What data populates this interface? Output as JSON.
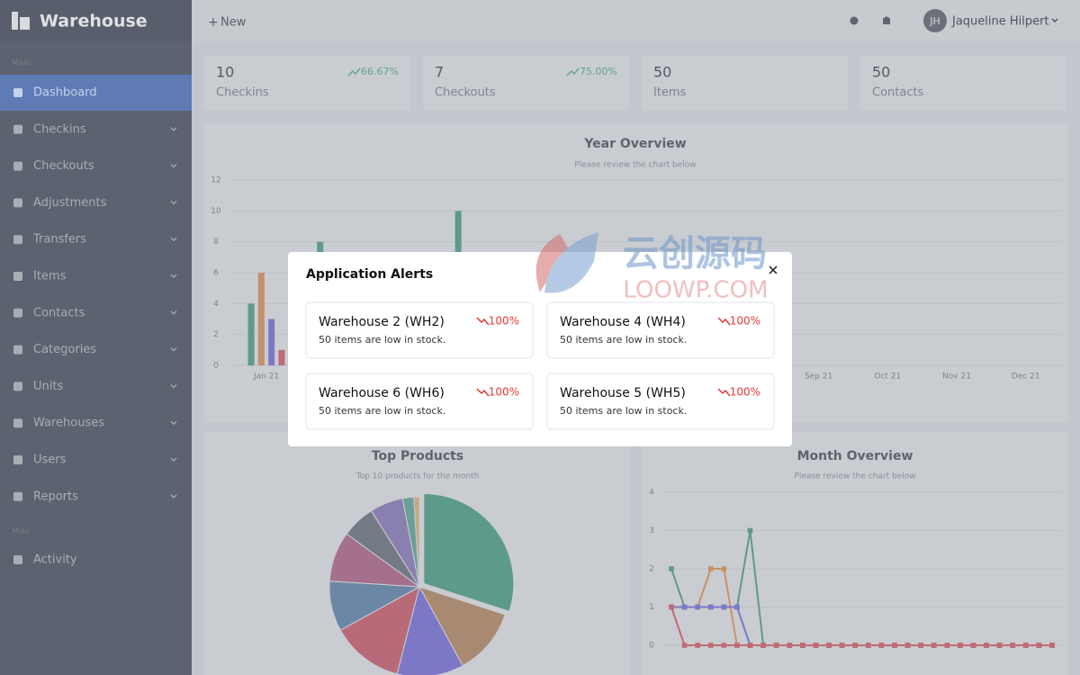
{
  "sidebar": {
    "brand": "Warehouse",
    "main_label": "Main",
    "menu": [
      "Dashboard",
      "Checkins",
      "Checkouts",
      "Adjustments",
      "Transfers",
      "Items",
      "Contacts",
      "Categories",
      "Units",
      "Warehouses",
      "Users",
      "Reports"
    ],
    "misc_label": "Misc",
    "misc_menu": [
      "Activity"
    ]
  },
  "topbar": {
    "new": "New",
    "user_initials": "JH",
    "user_name": "Jaqueline Hilpert"
  },
  "stats": [
    {
      "value": "10",
      "label": "Checkins",
      "change": "66.67%"
    },
    {
      "value": "7",
      "label": "Checkouts",
      "change": "75.00%"
    },
    {
      "value": "50",
      "label": "Items"
    },
    {
      "value": "50",
      "label": "Contacts"
    }
  ],
  "year_overview": {
    "type": "bar",
    "title": "Year Overview",
    "subtitle": "Please review the chart below",
    "categories": [
      "Jan 21",
      null,
      null,
      null,
      null,
      null,
      null,
      null,
      "Sep 21",
      "Oct 21",
      "Nov 21",
      "Dec 21"
    ],
    "series": [
      {
        "color": "#5e9a8c",
        "values": [
          4,
          8,
          null,
          10,
          null,
          null,
          null,
          null,
          0,
          0,
          0,
          0
        ]
      },
      {
        "color": "#c4906c",
        "values": [
          6,
          null,
          null,
          null,
          null,
          null,
          null,
          null,
          0,
          0,
          0,
          0
        ]
      },
      {
        "color": "#7d78c6",
        "values": [
          3,
          null,
          null,
          null,
          null,
          null,
          null,
          null,
          0,
          0,
          0,
          0
        ]
      },
      {
        "color": "#c16a74",
        "values": [
          1,
          null,
          null,
          null,
          null,
          null,
          null,
          null,
          0,
          0,
          0,
          0
        ]
      }
    ],
    "ylim": [
      0,
      12
    ],
    "yticks": [
      0,
      2,
      4,
      6,
      8,
      10,
      12
    ],
    "grid": true
  },
  "top_products": {
    "type": "pie",
    "title": "Top Products",
    "subtitle": "Top 10 products for the month",
    "values": [
      30,
      12,
      12,
      13,
      9,
      9,
      6,
      6,
      2,
      1
    ],
    "colors": [
      "#5e9a8c",
      "#a88a72",
      "#7d78c6",
      "#b86a78",
      "#6c87a6",
      "#a4708c",
      "#737a86",
      "#8a80b0",
      "#6aa098",
      "#c4a880"
    ]
  },
  "month_overview": {
    "type": "line",
    "title": "Month Overview",
    "subtitle": "Please review the chart below",
    "series": [
      {
        "color": "#5e9a8c",
        "values": [
          2,
          1,
          1,
          1,
          1,
          1,
          3,
          0,
          0,
          0,
          0,
          0,
          0,
          0,
          0,
          0,
          0,
          0,
          0,
          0,
          0,
          0,
          0,
          0,
          0,
          0,
          0,
          0,
          0,
          0
        ]
      },
      {
        "color": "#c99265",
        "values": [
          1,
          1,
          1,
          2,
          2,
          0,
          0,
          0,
          0,
          0,
          0,
          0,
          0,
          0,
          0,
          0,
          0,
          0,
          0,
          0,
          0,
          0,
          0,
          0,
          0,
          0,
          0,
          0,
          0,
          0
        ]
      },
      {
        "color": "#7d78c6",
        "values": [
          1,
          1,
          1,
          1,
          1,
          1,
          0,
          0,
          0,
          0,
          0,
          0,
          0,
          0,
          0,
          0,
          0,
          0,
          0,
          0,
          0,
          0,
          0,
          0,
          0,
          0,
          0,
          0,
          0,
          0
        ]
      },
      {
        "color": "#c16a74",
        "values": [
          1,
          0,
          0,
          0,
          0,
          0,
          0,
          0,
          0,
          0,
          0,
          0,
          0,
          0,
          0,
          0,
          0,
          0,
          0,
          0,
          0,
          0,
          0,
          0,
          0,
          0,
          0,
          0,
          0,
          0
        ]
      }
    ],
    "ylim": [
      0,
      4
    ],
    "yticks": [
      0,
      1,
      2,
      3,
      4
    ],
    "grid": true
  },
  "modal": {
    "title": "Application Alerts",
    "alerts": [
      {
        "name": "Warehouse 2 (WH2)",
        "change": "100%",
        "message": "50 items are low in stock."
      },
      {
        "name": "Warehouse 4 (WH4)",
        "change": "100%",
        "message": "50 items are low in stock."
      },
      {
        "name": "Warehouse 6 (WH6)",
        "change": "100%",
        "message": "50 items are low in stock."
      },
      {
        "name": "Warehouse 5 (WH5)",
        "change": "100%",
        "message": "50 items are low in stock."
      }
    ]
  },
  "watermark": {
    "cn": "云创源码",
    "en": "LOOWP.COM"
  }
}
